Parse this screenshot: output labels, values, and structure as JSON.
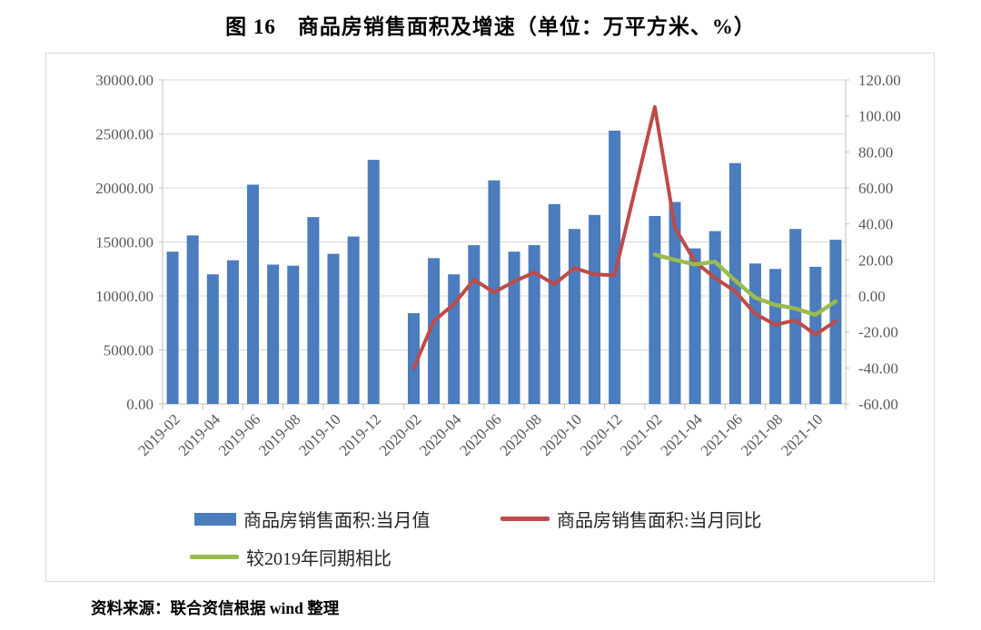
{
  "title": "图 16　商品房销售面积及增速（单位：万平方米、%）",
  "source_note": "资料来源：联合资信根据 wind 整理",
  "colors": {
    "bar_blue": "#4a7cbe",
    "line_red": "#be4b48",
    "line_green": "#9abb51",
    "gridline": "#d9d9d9",
    "axis_line": "#bfbfbf",
    "axis_text": "#595959",
    "frame_border": "#d9d9d9"
  },
  "legend": [
    {
      "label": "商品房销售面积:当月值",
      "swatch": "bar",
      "color": "#4a7cbe"
    },
    {
      "label": "商品房销售面积:当月同比",
      "swatch": "line",
      "color": "#be4b48"
    },
    {
      "label": "较2019年同期相比",
      "swatch": "line",
      "color": "#9abb51"
    }
  ],
  "chart_data": {
    "type": "bar",
    "subtype": "bar-line-combo",
    "title": "图 16　商品房销售面积及增速（单位：万平方米、%）",
    "xlabel": "",
    "ylabel_left": "万平方米",
    "ylabel_right": "%",
    "grid": true,
    "legend_position": "bottom-left",
    "categories": [
      "2019-02",
      "2019-03",
      "2019-04",
      "2019-05",
      "2019-06",
      "2019-07",
      "2019-08",
      "2019-09",
      "2019-10",
      "2019-11",
      "2019-12",
      "2020-02",
      "2020-03",
      "2020-04",
      "2020-05",
      "2020-06",
      "2020-07",
      "2020-08",
      "2020-09",
      "2020-10",
      "2020-11",
      "2020-12",
      "2021-02",
      "2021-03",
      "2021-04",
      "2021-05",
      "2021-06",
      "2021-07",
      "2021-08",
      "2021-09",
      "2021-10",
      "2021-11"
    ],
    "x_tick_labels": [
      "2019-02",
      "2019-04",
      "2019-06",
      "2019-08",
      "2019-10",
      "2019-12",
      "2020-02",
      "2020-04",
      "2020-06",
      "2020-08",
      "2020-10",
      "2020-12",
      "2021-02",
      "2021-04",
      "2021-06",
      "2021-08",
      "2021-10"
    ],
    "left_axis": {
      "min": 0,
      "max": 30000,
      "step": 5000,
      "tick_format": "0.00"
    },
    "right_axis": {
      "min": -60,
      "max": 120,
      "step": 20,
      "tick_format": "0.00"
    },
    "series": [
      {
        "name": "商品房销售面积:当月值",
        "type": "bar",
        "axis": "left",
        "color": "#4a7cbe",
        "values": [
          14100,
          15600,
          12000,
          13300,
          20300,
          12900,
          12800,
          17300,
          13900,
          15500,
          22600,
          8400,
          13500,
          12000,
          14700,
          20700,
          14100,
          14700,
          18500,
          16200,
          17500,
          25300,
          17400,
          18700,
          14400,
          16000,
          22300,
          13000,
          12500,
          16200,
          12700,
          15200
        ]
      },
      {
        "name": "商品房销售面积:当月同比",
        "type": "line",
        "axis": "right",
        "color": "#be4b48",
        "values": [
          null,
          null,
          null,
          null,
          null,
          null,
          null,
          null,
          null,
          null,
          null,
          -40,
          -14,
          -4.5,
          9,
          2,
          8,
          13,
          6.5,
          15.5,
          12,
          11.5,
          105,
          38,
          19,
          10,
          2.5,
          -10,
          -16,
          -13.5,
          -21.5,
          -14
        ]
      },
      {
        "name": "较2019年同期相比",
        "type": "line",
        "axis": "right",
        "color": "#9abb51",
        "values": [
          null,
          null,
          null,
          null,
          null,
          null,
          null,
          null,
          null,
          null,
          null,
          null,
          null,
          null,
          null,
          null,
          null,
          null,
          null,
          null,
          null,
          null,
          23,
          20,
          17.5,
          19,
          8.5,
          -1,
          -5,
          -7,
          -10.5,
          -3
        ]
      }
    ]
  }
}
